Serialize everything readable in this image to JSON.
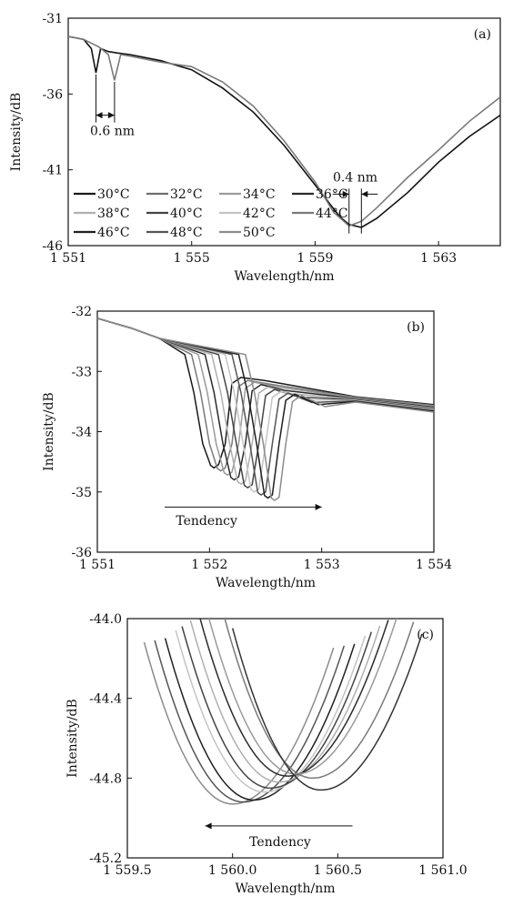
{
  "chart_data": [
    {
      "panel": "(a)",
      "type": "line",
      "xlabel": "Wavelength/nm",
      "ylabel": "Intensity/dB",
      "xlim": [
        1551,
        1565
      ],
      "ylim": [
        -46,
        -31
      ],
      "xticks": [
        1551,
        1555,
        1559,
        1563
      ],
      "xtick_labels": [
        "1 551",
        "1 555",
        "1 559",
        "1 563"
      ],
      "yticks": [
        -31,
        -36,
        -41,
        -46
      ],
      "ytick_labels": [
        "-31",
        "-36",
        "-41",
        "-46"
      ],
      "legend": [
        "30°C",
        "32°C",
        "34°C",
        "36°C",
        "38°C",
        "40°C",
        "42°C",
        "44°C",
        "46°C",
        "48°C",
        "50°C"
      ],
      "legend_colors": [
        "#1a1a1a",
        "#6e6e6e",
        "#9a9a9a",
        "#2b2b2b",
        "#b0b0b0",
        "#444444",
        "#c4c4c4",
        "#7a7a7a",
        "#1f1f1f",
        "#555555",
        "#8c8c8c"
      ],
      "annotations": [
        {
          "text": "0.6 nm",
          "from": 1551.9,
          "to": 1552.5,
          "y": -37.4
        },
        {
          "text": "0.4 nm",
          "from": 1560.1,
          "to": 1560.5,
          "y": -42.6
        }
      ],
      "series": [
        {
          "color": "#111111",
          "points": [
            [
              1551,
              -32.2
            ],
            [
              1551.5,
              -32.4
            ],
            [
              1551.75,
              -33
            ],
            [
              1551.9,
              -34.6
            ],
            [
              1552.05,
              -33
            ],
            [
              1552.3,
              -33.2
            ],
            [
              1552.6,
              -33.3
            ],
            [
              1553,
              -33.4
            ],
            [
              1554,
              -33.8
            ],
            [
              1555,
              -34.4
            ],
            [
              1556,
              -35.6
            ],
            [
              1557,
              -37.2
            ],
            [
              1558,
              -39.4
            ],
            [
              1559,
              -42
            ],
            [
              1559.8,
              -44.1
            ],
            [
              1560.1,
              -44.6
            ],
            [
              1560.5,
              -44.8
            ],
            [
              1561,
              -44.2
            ],
            [
              1562,
              -42.5
            ],
            [
              1563,
              -40.5
            ],
            [
              1564,
              -38.8
            ],
            [
              1565,
              -37.4
            ]
          ]
        },
        {
          "color": "#7a7a7a",
          "points": [
            [
              1551,
              -32.2
            ],
            [
              1551.5,
              -32.4
            ],
            [
              1552,
              -32.9
            ],
            [
              1552.3,
              -33.4
            ],
            [
              1552.5,
              -35.1
            ],
            [
              1552.7,
              -33.4
            ],
            [
              1553,
              -33.5
            ],
            [
              1554,
              -33.9
            ],
            [
              1555,
              -34.2
            ],
            [
              1556,
              -35.2
            ],
            [
              1557,
              -36.8
            ],
            [
              1558,
              -39.1
            ],
            [
              1559,
              -41.8
            ],
            [
              1559.6,
              -43.8
            ],
            [
              1560.1,
              -44.7
            ],
            [
              1560.5,
              -44.4
            ],
            [
              1561,
              -43.5
            ],
            [
              1562,
              -41.5
            ],
            [
              1563,
              -39.7
            ],
            [
              1564,
              -37.8
            ],
            [
              1565,
              -36.2
            ]
          ]
        }
      ]
    },
    {
      "panel": "(b)",
      "type": "line",
      "xlabel": "Wavelength/nm",
      "ylabel": "Intensity/dB",
      "xlim": [
        1551,
        1554
      ],
      "ylim": [
        -36,
        -32
      ],
      "xticks": [
        1551,
        1552,
        1553,
        1554
      ],
      "xtick_labels": [
        "1 551",
        "1 552",
        "1 553",
        "1 554"
      ],
      "yticks": [
        -32,
        -33,
        -34,
        -35,
        -36
      ],
      "ytick_labels": [
        "-32",
        "-33",
        "-34",
        "-35",
        "-36"
      ],
      "annotations": [
        {
          "text": "Tendency",
          "arrow": [
            1551.6,
            1553.0
          ],
          "y": -35.25,
          "label_y": -35.55,
          "label_x": 1551.7
        }
      ],
      "series": [
        {
          "color": "#1a1a1a",
          "dip_center": 1552.04,
          "dip_min": -34.6,
          "shoulder": -33.1
        },
        {
          "color": "#7a7a7a",
          "dip_center": 1552.1,
          "dip_min": -34.65,
          "shoulder": -33.15
        },
        {
          "color": "#9a9a9a",
          "dip_center": 1552.16,
          "dip_min": -34.72,
          "shoulder": -33.18
        },
        {
          "color": "#2b2b2b",
          "dip_center": 1552.22,
          "dip_min": -34.8,
          "shoulder": -33.22
        },
        {
          "color": "#b0b0b0",
          "dip_center": 1552.28,
          "dip_min": -34.87,
          "shoulder": -33.26
        },
        {
          "color": "#444444",
          "dip_center": 1552.34,
          "dip_min": -34.93,
          "shoulder": -33.3
        },
        {
          "color": "#c4c4c4",
          "dip_center": 1552.4,
          "dip_min": -35.0,
          "shoulder": -33.33
        },
        {
          "color": "#555555",
          "dip_center": 1552.46,
          "dip_min": -35.05,
          "shoulder": -33.36
        },
        {
          "color": "#1f1f1f",
          "dip_center": 1552.52,
          "dip_min": -35.1,
          "shoulder": -33.38
        },
        {
          "color": "#8c8c8c",
          "dip_center": 1552.58,
          "dip_min": -35.14,
          "shoulder": -33.4
        }
      ]
    },
    {
      "panel": "(c)",
      "type": "line",
      "xlabel": "Wavelength/nm",
      "ylabel": "Intensity/dB",
      "xlim": [
        1559.5,
        1561.0
      ],
      "ylim": [
        -45.2,
        -44.0
      ],
      "xticks": [
        1559.5,
        1560.0,
        1560.5,
        1561.0
      ],
      "xtick_labels": [
        "1 559.5",
        "1 560.0",
        "1 560.5",
        "1 561.0"
      ],
      "yticks": [
        -44.0,
        -44.4,
        -44.8,
        -45.2
      ],
      "ytick_labels": [
        "-44.0",
        "-44.4",
        "-44.8",
        "-45.2"
      ],
      "annotations": [
        {
          "text": "Tendency",
          "arrow": [
            1560.57,
            1559.87
          ],
          "y": -45.04,
          "label_y": -45.14,
          "label_x": 1560.08
        }
      ],
      "series": [
        {
          "color": "#8c8c8c",
          "min_x": 1560.0,
          "min_y": -44.93
        },
        {
          "color": "#555555",
          "min_x": 1560.05,
          "min_y": -44.92
        },
        {
          "color": "#1f1f1f",
          "min_x": 1560.1,
          "min_y": -44.91
        },
        {
          "color": "#c4c4c4",
          "min_x": 1560.15,
          "min_y": -44.87
        },
        {
          "color": "#444444",
          "min_x": 1560.18,
          "min_y": -44.85
        },
        {
          "color": "#b0b0b0",
          "min_x": 1560.22,
          "min_y": -44.82
        },
        {
          "color": "#2b2b2b",
          "min_x": 1560.26,
          "min_y": -44.79
        },
        {
          "color": "#9a9a9a",
          "min_x": 1560.3,
          "min_y": -44.78
        },
        {
          "color": "#7a7a7a",
          "min_x": 1560.38,
          "min_y": -44.8
        },
        {
          "color": "#333333",
          "min_x": 1560.42,
          "min_y": -44.86
        }
      ]
    }
  ]
}
